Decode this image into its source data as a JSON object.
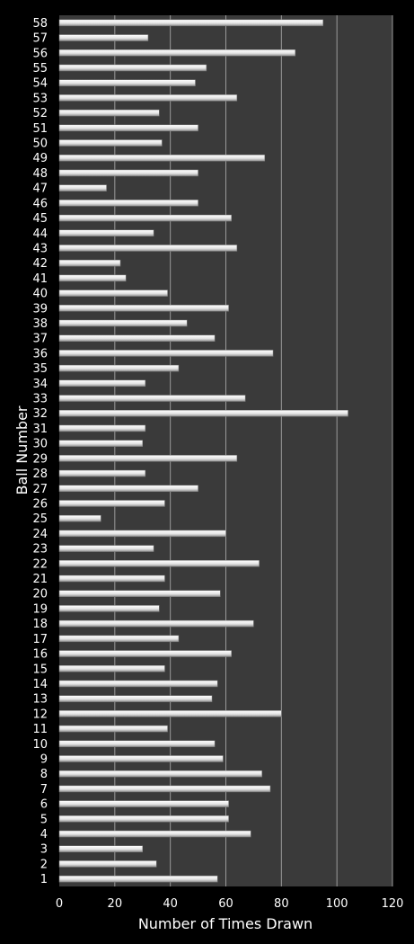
{
  "chart_data": {
    "type": "bar",
    "orientation": "horizontal",
    "title": "",
    "xlabel": "Number of Times Drawn",
    "ylabel": "Ball Number",
    "xlim": [
      0,
      120
    ],
    "xticks": [
      0,
      20,
      40,
      60,
      80,
      100,
      120
    ],
    "grid": true,
    "legend": "none",
    "colors": {
      "background": "#000000",
      "plot_area": "#3a3a3a",
      "grid": "#9a9a9a",
      "bar": "#e6e6e6",
      "text": "#ffffff"
    },
    "categories": [
      "1",
      "2",
      "3",
      "4",
      "5",
      "6",
      "7",
      "8",
      "9",
      "10",
      "11",
      "12",
      "13",
      "14",
      "15",
      "16",
      "17",
      "18",
      "19",
      "20",
      "21",
      "22",
      "23",
      "24",
      "25",
      "26",
      "27",
      "28",
      "29",
      "30",
      "31",
      "32",
      "33",
      "34",
      "35",
      "36",
      "37",
      "38",
      "39",
      "40",
      "41",
      "42",
      "43",
      "44",
      "45",
      "46",
      "47",
      "48",
      "49",
      "50",
      "51",
      "52",
      "53",
      "54",
      "55",
      "56",
      "57",
      "58"
    ],
    "values": [
      57,
      35,
      30,
      69,
      61,
      61,
      76,
      73,
      59,
      56,
      39,
      80,
      55,
      57,
      38,
      62,
      43,
      70,
      36,
      58,
      38,
      72,
      34,
      60,
      15,
      38,
      50,
      31,
      64,
      30,
      31,
      104,
      67,
      31,
      43,
      77,
      56,
      46,
      61,
      39,
      24,
      22,
      64,
      34,
      62,
      50,
      17,
      50,
      74,
      37,
      50,
      36,
      64,
      49,
      53,
      85,
      32,
      95
    ]
  }
}
